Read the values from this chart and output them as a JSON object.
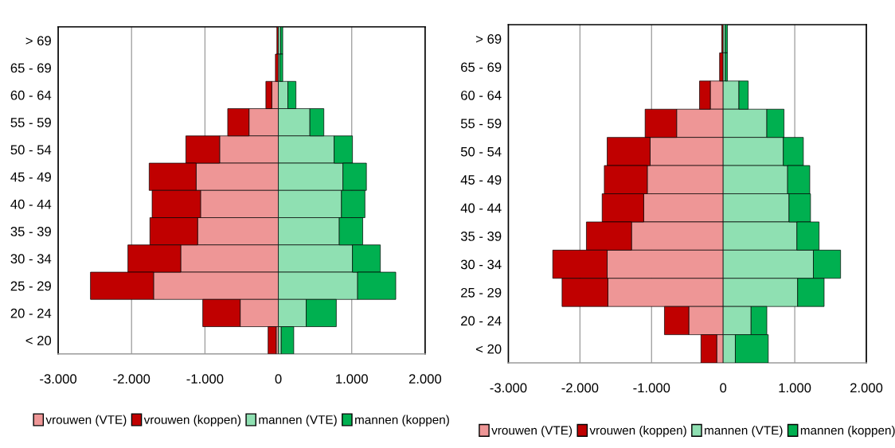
{
  "chart_data": [
    {
      "type": "bar",
      "orientation": "horizontal",
      "stacked": true,
      "categories": [
        "> 69",
        "65 - 69",
        "60 - 64",
        "55 - 59",
        "50 - 54",
        "45 - 49",
        "40 - 44",
        "35 - 39",
        "30 - 34",
        "25 - 29",
        "20 - 24",
        "< 20"
      ],
      "series": [
        {
          "name": "vrouwen (VTE)",
          "color": "#ee9696",
          "values": [
            null,
            null,
            -90,
            -400,
            -800,
            -1120,
            -1060,
            -1100,
            -1330,
            -1700,
            -520,
            -30
          ]
        },
        {
          "name": "vrouwen (koppen)",
          "color": "#c00000",
          "values": [
            -20,
            -40,
            -80,
            -290,
            -460,
            -640,
            -660,
            -650,
            -720,
            -860,
            -510,
            -110
          ]
        },
        {
          "name": "mannen (VTE)",
          "color": "#8fe0b2",
          "values": [
            30,
            20,
            130,
            430,
            760,
            880,
            860,
            830,
            1010,
            1080,
            380,
            40
          ]
        },
        {
          "name": "mannen (koppen)",
          "color": "#00b050",
          "values": [
            30,
            40,
            110,
            190,
            250,
            320,
            320,
            320,
            380,
            520,
            410,
            170
          ]
        }
      ],
      "xlim": [
        -3000,
        2000
      ],
      "xticks": [
        {
          "value": -3000,
          "label": "-3.000"
        },
        {
          "value": -2000,
          "label": "-2.000"
        },
        {
          "value": -1000,
          "label": "-1.000"
        },
        0,
        {
          "value": 1000,
          "label": "1.000"
        },
        {
          "value": 2000,
          "label": "2.000"
        }
      ],
      "grid": "x",
      "legend": "bottom"
    },
    {
      "type": "bar",
      "orientation": "horizontal",
      "stacked": true,
      "categories": [
        "> 69",
        "65 - 69",
        "60 - 64",
        "55 - 59",
        "50 - 54",
        "45 - 49",
        "40 - 44",
        "35 - 39",
        "30 - 34",
        "25 - 29",
        "20 - 24",
        "< 20"
      ],
      "series": [
        {
          "name": "vrouwen (VTE)",
          "color": "#ee9696",
          "values": [
            null,
            null,
            -180,
            -650,
            -1020,
            -1060,
            -1110,
            -1280,
            -1620,
            -1610,
            -480,
            -90
          ]
        },
        {
          "name": "vrouwen (koppen)",
          "color": "#c00000",
          "values": [
            -20,
            -50,
            -150,
            -440,
            -600,
            -600,
            -580,
            -630,
            -760,
            -640,
            -340,
            -220
          ]
        },
        {
          "name": "mannen (VTE)",
          "color": "#8fe0b2",
          "values": [
            30,
            30,
            220,
            610,
            840,
            900,
            920,
            1030,
            1260,
            1040,
            390,
            170
          ]
        },
        {
          "name": "mannen (koppen)",
          "color": "#00b050",
          "values": [
            30,
            30,
            130,
            240,
            280,
            310,
            300,
            310,
            380,
            370,
            220,
            460
          ]
        }
      ],
      "xlim": [
        -3000,
        2000
      ],
      "xticks": [
        {
          "value": -3000,
          "label": "-3.000"
        },
        {
          "value": -2000,
          "label": "-2.000"
        },
        {
          "value": -1000,
          "label": "-1.000"
        },
        0,
        {
          "value": 1000,
          "label": "1.000"
        },
        {
          "value": 2000,
          "label": "2.000"
        }
      ],
      "grid": "x",
      "legend": "bottom"
    }
  ]
}
